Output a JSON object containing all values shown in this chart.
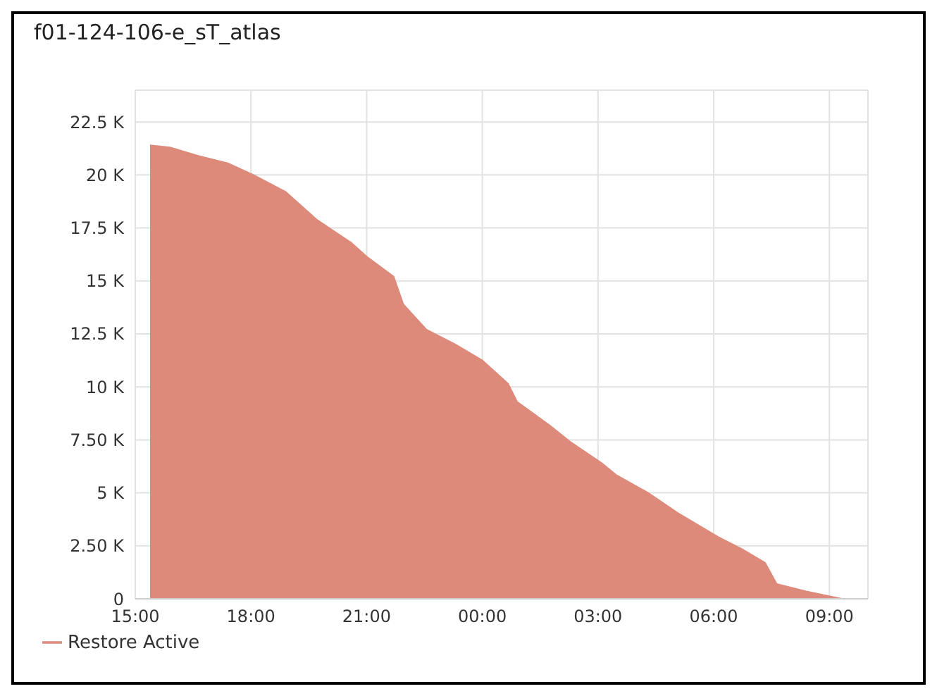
{
  "chart_data": {
    "type": "area",
    "title": "f01-124-106-e_sT_atlas",
    "x": [
      "2000-01-01T15:23",
      "2000-01-01T15:54",
      "2000-01-01T16:38",
      "2000-01-01T17:24",
      "2000-01-01T18:04",
      "2000-01-01T18:54",
      "2000-01-01T19:42",
      "2000-01-01T20:36",
      "2000-01-01T21:02",
      "2000-01-01T21:42",
      "2000-01-01T21:57",
      "2000-01-01T22:33",
      "2000-01-01T23:18",
      "2000-01-02T00:00",
      "2000-01-02T00:40",
      "2000-01-02T00:54",
      "2000-01-02T01:44",
      "2000-01-02T02:17",
      "2000-01-02T03:06",
      "2000-01-02T03:28",
      "2000-01-02T04:18",
      "2000-01-02T05:04",
      "2000-01-02T06:08",
      "2000-01-02T06:44",
      "2000-01-02T07:20",
      "2000-01-02T07:38",
      "2000-01-02T08:24",
      "2000-01-02T09:19"
    ],
    "series": [
      {
        "name": "Restore Active",
        "color": "#de8a7b",
        "values": [
          21.4,
          21.3,
          20.9,
          20.55,
          20.0,
          19.2,
          17.9,
          16.8,
          16.1,
          15.2,
          13.9,
          12.7,
          12.0,
          11.25,
          10.15,
          9.3,
          8.2,
          7.4,
          6.4,
          5.85,
          5.0,
          4.05,
          2.9,
          2.35,
          1.7,
          0.7,
          0.35,
          0
        ]
      }
    ],
    "xlim": [
      "2000-01-01T15:00",
      "2000-01-02T10:00"
    ],
    "xticks": [
      {
        "value": "2000-01-01T15:00",
        "label": "15:00"
      },
      {
        "value": "2000-01-01T18:00",
        "label": "18:00"
      },
      {
        "value": "2000-01-01T21:00",
        "label": "21:00"
      },
      {
        "value": "2000-01-02T00:00",
        "label": "00:00"
      },
      {
        "value": "2000-01-02T03:00",
        "label": "03:00"
      },
      {
        "value": "2000-01-02T06:00",
        "label": "06:00"
      },
      {
        "value": "2000-01-02T09:00",
        "label": "09:00"
      }
    ],
    "ylim": [
      0,
      24
    ],
    "yticks": [
      0,
      {
        "value": 2.5,
        "label": "2.50 K"
      },
      {
        "value": 5,
        "label": "5 K"
      },
      {
        "value": 7.5,
        "label": "7.50 K"
      },
      {
        "value": 10,
        "label": "10 K"
      },
      {
        "value": 12.5,
        "label": "12.5 K"
      },
      {
        "value": 15,
        "label": "15 K"
      },
      {
        "value": 17.5,
        "label": "17.5 K"
      },
      {
        "value": 20,
        "label": "20 K"
      },
      {
        "value": 22.5,
        "label": "22.5 K"
      }
    ],
    "grid": true,
    "legend": "bottom left"
  }
}
